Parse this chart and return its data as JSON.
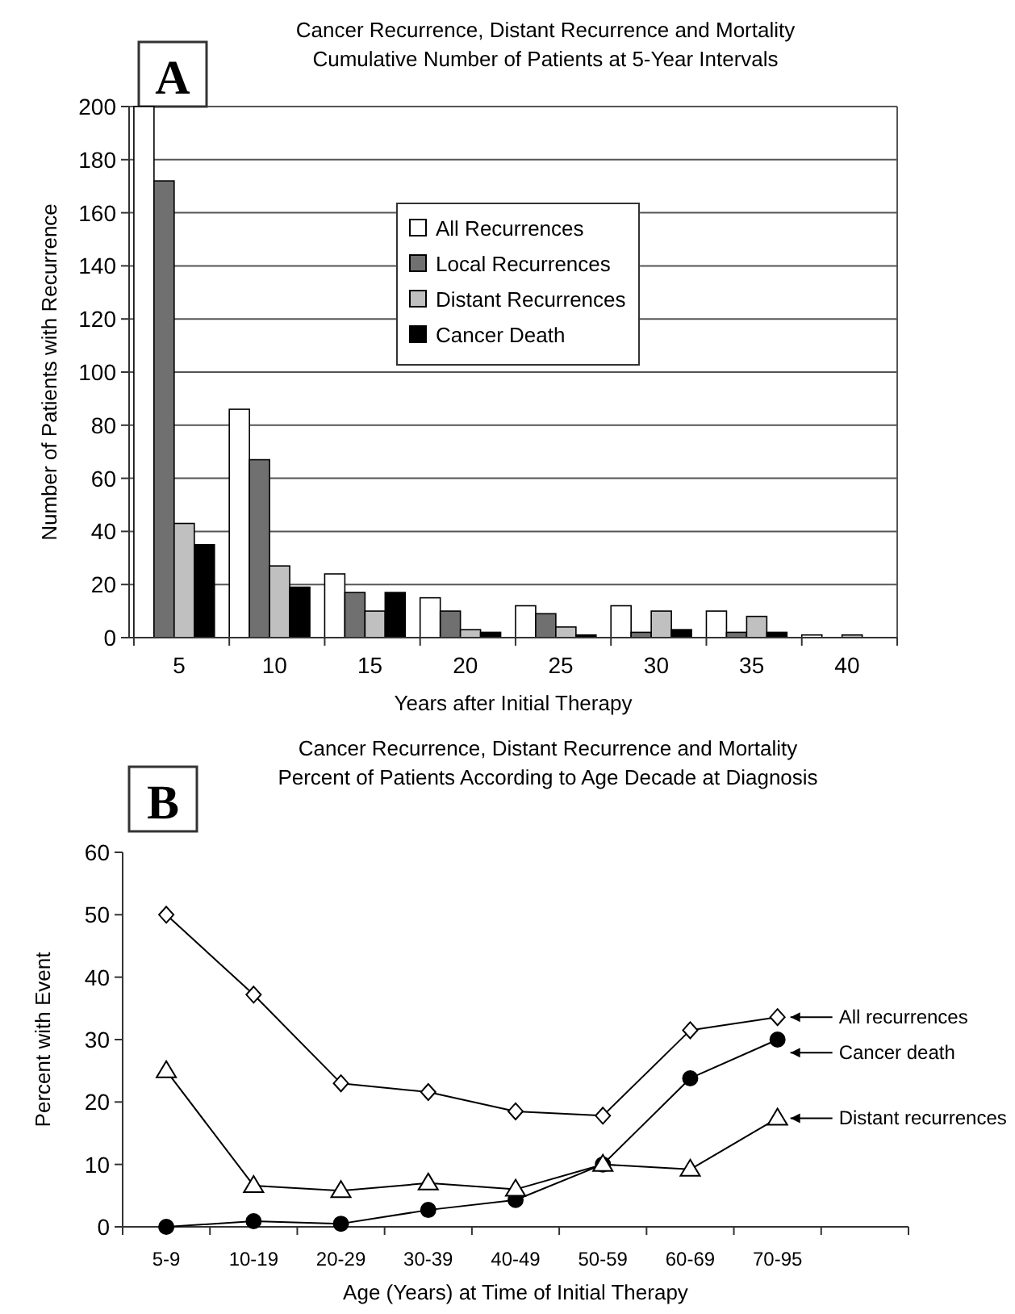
{
  "chart_data": [
    {
      "type": "bar",
      "title": "Cancer Recurrence, Distant Recurrence and Mortality",
      "subtitle": "Cumulative Number of Patients at 5-Year Intervals",
      "xlabel": "Years after Initial Therapy",
      "ylabel": "Number of Patients with Recurrence",
      "annotations": [
        "A"
      ],
      "categories": [
        "5",
        "10",
        "15",
        "20",
        "25",
        "30",
        "35",
        "40"
      ],
      "series": [
        {
          "name": "All Recurrences",
          "color": "#ffffff",
          "values": [
            200,
            86,
            24,
            15,
            12,
            12,
            10,
            1
          ]
        },
        {
          "name": "Local Recurrences",
          "color": "#707070",
          "values": [
            172,
            67,
            17,
            10,
            9,
            2,
            2,
            0
          ]
        },
        {
          "name": "Distant Recurrences",
          "color": "#c0c0c0",
          "values": [
            43,
            27,
            10,
            3,
            4,
            10,
            8,
            1
          ]
        },
        {
          "name": "Cancer Death",
          "color": "#000000",
          "values": [
            35,
            19,
            17,
            2,
            1,
            3,
            2,
            0
          ]
        }
      ],
      "ylim": [
        0,
        200
      ],
      "yticks": [
        0,
        20,
        40,
        60,
        80,
        100,
        120,
        140,
        160,
        180,
        200
      ],
      "grid": "y",
      "legend": "top right"
    },
    {
      "type": "line",
      "title": "Cancer Recurrence, Distant Recurrence and Mortality",
      "subtitle": "Percent of Patients According to  Age Decade at Diagnosis",
      "xlabel": "Age (Years) at Time of Initial Therapy",
      "ylabel": "Percent with Event",
      "annotations": [
        "B",
        "All recurrences",
        "Cancer death",
        "Distant recurrences"
      ],
      "categories": [
        "5-9",
        "10-19",
        "20-29",
        "30-39",
        "40-49",
        "50-59",
        "60-69",
        "70-95"
      ],
      "series": [
        {
          "color": "#000000",
          "marker": "diamond",
          "values": [
            50,
            37.2,
            23,
            21.6,
            18.5,
            17.8,
            31.5,
            33.6
          ]
        },
        {
          "color": "#000000",
          "marker": "circle",
          "values": [
            0,
            0.9,
            0.5,
            2.7,
            4.3,
            10,
            23.8,
            30
          ]
        },
        {
          "color": "#000000",
          "marker": "triangle",
          "values": [
            25,
            6.6,
            5.8,
            7,
            6,
            10,
            9.2,
            17.4
          ]
        }
      ],
      "ylim": [
        0,
        60
      ],
      "yticks": [
        0,
        10,
        20,
        30,
        40,
        50,
        60
      ],
      "grid": false
    }
  ]
}
